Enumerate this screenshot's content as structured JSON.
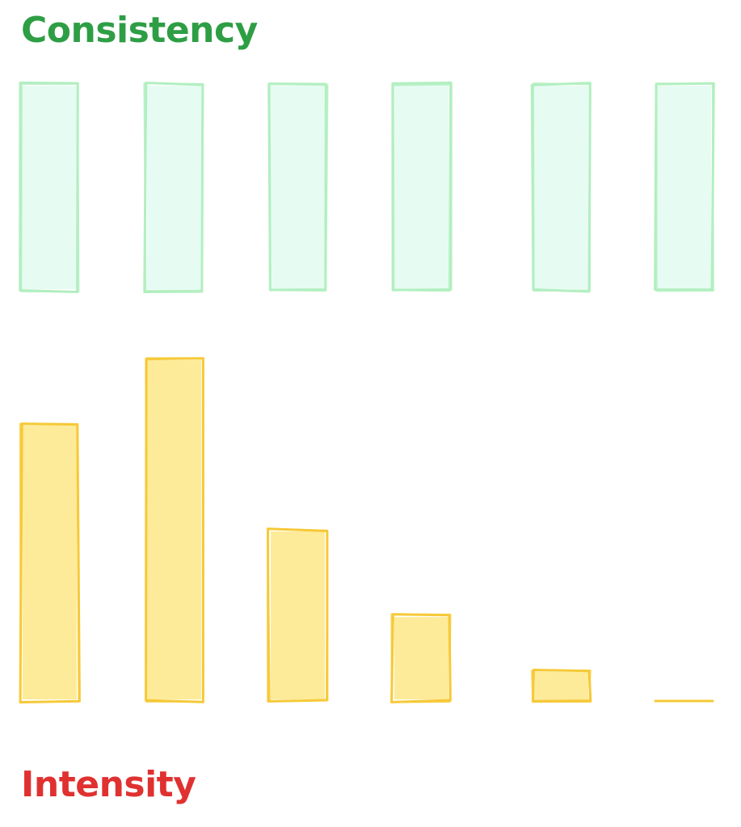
{
  "chart_data": [
    {
      "type": "bar",
      "title": "Consistency",
      "categories": [
        "",
        "",
        "",
        "",
        "",
        ""
      ],
      "values": [
        1,
        1,
        1,
        1,
        1,
        1
      ],
      "ylim": [
        0,
        1
      ],
      "grid": false,
      "colors": {
        "fill": "#e6fcf3",
        "stroke": "#b2efc0",
        "title": "#2e9e45"
      }
    },
    {
      "type": "bar",
      "title": "Intensity",
      "categories": [
        "",
        "",
        "",
        "",
        "",
        ""
      ],
      "values": [
        0.81,
        1.0,
        0.5,
        0.25,
        0.09,
        0.0
      ],
      "ylim": [
        0,
        1
      ],
      "grid": false,
      "colors": {
        "fill": "#feeb99",
        "stroke": "#f6c937",
        "title": "#e03131"
      }
    }
  ]
}
